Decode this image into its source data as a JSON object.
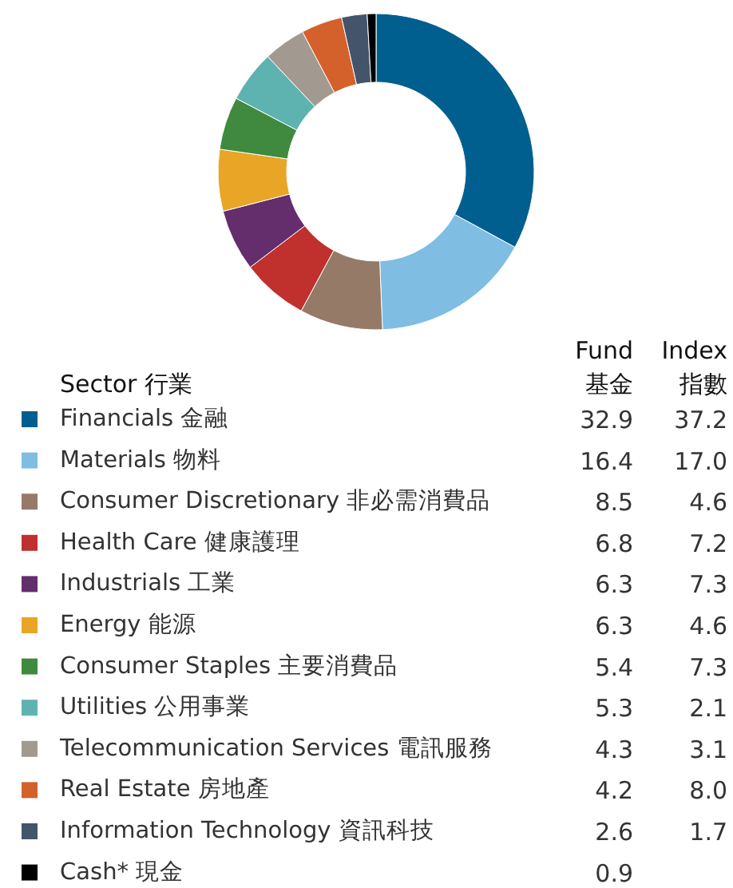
{
  "chart_data": [
    {
      "type": "donut",
      "legend_title": "Sector 行業",
      "legend": "bottom",
      "data_labels": true,
      "categories": [
        "Financials 金融",
        "Materials 物料",
        "Consumer Discretionary 非必需消費品",
        "Health Care 健康護理",
        "Industrials 工業",
        "Energy 能源",
        "Consumer Staples 主要消費品",
        "Utilities 公用事業",
        "Telecommunication Services 電訊服務",
        "Real Estate 房地產",
        "Information Technology 資訊科技",
        "Cash* 現金"
      ],
      "colors": [
        "#005f8f",
        "#7fbde2",
        "#957a68",
        "#c0302c",
        "#642d6c",
        "#e8a526",
        "#3f8a3e",
        "#5eb3b1",
        "#a29a90",
        "#d4612b",
        "#44546a",
        "#000000"
      ],
      "series": [
        {
          "name": "Fund 基金",
          "values": [
            32.9,
            16.4,
            8.5,
            6.8,
            6.3,
            6.3,
            5.4,
            5.3,
            4.3,
            4.2,
            2.6,
            0.9
          ]
        }
      ]
    },
    {
      "type": "other",
      "series": [
        {
          "name": "Index 指數",
          "values": [
            37.2,
            17.0,
            4.6,
            7.2,
            7.3,
            4.6,
            7.3,
            2.1,
            3.1,
            8.0,
            1.7,
            null
          ],
          "value_labels": [
            "37.2",
            "17.0",
            "4.6",
            "7.2",
            "7.3",
            "4.6",
            "7.3",
            "2.1",
            "3.1",
            "8.0",
            "1.7",
            null
          ]
        }
      ]
    }
  ]
}
